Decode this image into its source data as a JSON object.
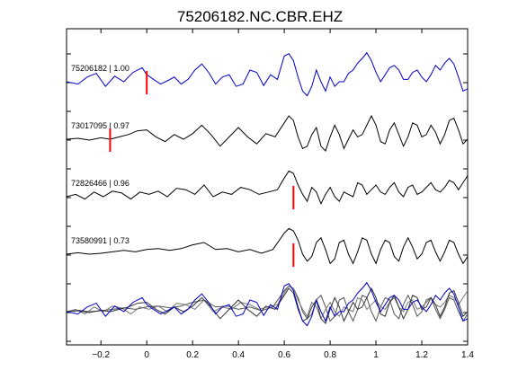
{
  "chart_data": {
    "type": "line",
    "title": "75206182.NC.CBR.EHZ",
    "xlabel": "",
    "ylabel": "",
    "xlim": [
      -0.35,
      1.4
    ],
    "xticks": [
      -0.2,
      0,
      0.2,
      0.4,
      0.6,
      0.8,
      1,
      1.2,
      1.4
    ],
    "xtick_labels": [
      "−0.2",
      "0",
      "0.2",
      "0.4",
      "0.6",
      "0.8",
      "1",
      "1.2",
      "1.4"
    ],
    "grid": false,
    "trace_spacing": 1,
    "traces": [
      {
        "label": "75206182 | 1.00",
        "color": "#0000cc",
        "baseline": 0,
        "pick_time": 0.0,
        "x": [
          -0.35,
          -0.3,
          -0.26,
          -0.22,
          -0.18,
          -0.14,
          -0.1,
          -0.06,
          -0.02,
          0.0,
          0.03,
          0.06,
          0.09,
          0.12,
          0.15,
          0.18,
          0.21,
          0.24,
          0.27,
          0.3,
          0.33,
          0.36,
          0.39,
          0.42,
          0.45,
          0.48,
          0.51,
          0.54,
          0.57,
          0.6,
          0.62,
          0.64,
          0.66,
          0.68,
          0.7,
          0.72,
          0.74,
          0.76,
          0.78,
          0.8,
          0.82,
          0.84,
          0.86,
          0.88,
          0.9,
          0.92,
          0.94,
          0.96,
          0.98,
          1.0,
          1.02,
          1.04,
          1.06,
          1.08,
          1.1,
          1.12,
          1.14,
          1.16,
          1.18,
          1.2,
          1.22,
          1.24,
          1.26,
          1.28,
          1.3,
          1.32,
          1.34,
          1.36,
          1.38,
          1.4
        ],
        "y": [
          0.0,
          -0.05,
          0.1,
          0.18,
          -0.1,
          0.12,
          0.0,
          0.2,
          0.3,
          0.15,
          0.05,
          -0.05,
          0.02,
          0.1,
          -0.05,
          0.05,
          0.25,
          0.38,
          0.2,
          -0.05,
          0.1,
          0.15,
          -0.1,
          -0.05,
          0.25,
          0.2,
          -0.08,
          0.15,
          0.05,
          0.55,
          0.6,
          0.45,
          0.1,
          -0.2,
          -0.3,
          -0.1,
          0.25,
          0.0,
          -0.2,
          0.1,
          -0.1,
          0.0,
          0.0,
          0.18,
          0.25,
          0.4,
          0.5,
          0.62,
          0.45,
          0.2,
          0.0,
          0.15,
          0.3,
          0.35,
          0.25,
          0.05,
          0.05,
          0.2,
          0.25,
          0.1,
          0.0,
          0.15,
          0.35,
          0.25,
          0.4,
          0.5,
          0.38,
          0.1,
          -0.2,
          -0.15
        ]
      },
      {
        "label": "73017095 | 0.97",
        "color": "#000000",
        "baseline": -1,
        "pick_time": -0.16,
        "x": [
          -0.35,
          -0.3,
          -0.25,
          -0.2,
          -0.16,
          -0.12,
          -0.08,
          -0.04,
          0.0,
          0.04,
          0.08,
          0.12,
          0.16,
          0.2,
          0.24,
          0.28,
          0.32,
          0.36,
          0.4,
          0.44,
          0.48,
          0.52,
          0.56,
          0.6,
          0.62,
          0.64,
          0.66,
          0.68,
          0.7,
          0.72,
          0.74,
          0.76,
          0.78,
          0.8,
          0.82,
          0.84,
          0.86,
          0.88,
          0.9,
          0.92,
          0.94,
          0.96,
          0.98,
          1.0,
          1.02,
          1.04,
          1.06,
          1.08,
          1.1,
          1.12,
          1.14,
          1.16,
          1.18,
          1.2,
          1.22,
          1.24,
          1.26,
          1.28,
          1.3,
          1.32,
          1.34,
          1.36,
          1.38,
          1.4
        ],
        "y": [
          0.0,
          0.02,
          -0.02,
          0.03,
          0.0,
          0.05,
          0.1,
          0.18,
          0.2,
          0.05,
          -0.05,
          0.1,
          0.0,
          0.12,
          0.3,
          0.1,
          -0.15,
          0.05,
          0.25,
          0.05,
          -0.1,
          0.12,
          0.05,
          0.35,
          0.5,
          0.4,
          0.05,
          -0.2,
          -0.15,
          0.1,
          0.25,
          -0.15,
          -0.25,
          0.05,
          0.3,
          0.1,
          -0.2,
          0.0,
          0.2,
          0.05,
          0.1,
          0.3,
          0.5,
          0.3,
          -0.05,
          -0.1,
          0.2,
          0.35,
          0.1,
          -0.15,
          0.05,
          0.35,
          0.3,
          0.05,
          0.1,
          0.3,
          0.15,
          -0.1,
          0.1,
          0.4,
          0.45,
          0.2,
          -0.1,
          0.0
        ]
      },
      {
        "label": "72826466 | 0.96",
        "color": "#000000",
        "baseline": -2,
        "pick_time": 0.64,
        "x": [
          -0.35,
          -0.31,
          -0.27,
          -0.23,
          -0.19,
          -0.15,
          -0.11,
          -0.07,
          -0.03,
          0.01,
          0.05,
          0.09,
          0.13,
          0.17,
          0.21,
          0.25,
          0.29,
          0.33,
          0.37,
          0.41,
          0.45,
          0.49,
          0.53,
          0.57,
          0.6,
          0.62,
          0.64,
          0.66,
          0.68,
          0.7,
          0.72,
          0.74,
          0.76,
          0.78,
          0.8,
          0.82,
          0.84,
          0.86,
          0.88,
          0.9,
          0.92,
          0.94,
          0.96,
          0.98,
          1.0,
          1.02,
          1.04,
          1.06,
          1.08,
          1.1,
          1.12,
          1.14,
          1.16,
          1.18,
          1.2,
          1.22,
          1.24,
          1.26,
          1.28,
          1.3,
          1.32,
          1.34,
          1.36,
          1.38,
          1.4
        ],
        "y": [
          0.0,
          0.05,
          -0.05,
          0.1,
          0.0,
          0.12,
          0.08,
          -0.05,
          0.1,
          0.05,
          0.12,
          0.0,
          0.18,
          0.15,
          0.05,
          0.25,
          0.0,
          0.1,
          0.05,
          0.2,
          0.15,
          0.05,
          0.1,
          0.15,
          0.4,
          0.55,
          0.5,
          0.25,
          0.05,
          -0.1,
          0.2,
          0.1,
          -0.15,
          0.05,
          0.2,
          0.0,
          -0.1,
          0.1,
          0.05,
          0.0,
          0.3,
          0.25,
          0.05,
          0.15,
          0.25,
          0.1,
          0.05,
          0.2,
          0.3,
          0.1,
          0.0,
          0.2,
          0.25,
          0.05,
          0.1,
          0.2,
          0.3,
          0.15,
          0.1,
          0.2,
          0.35,
          0.3,
          0.15,
          0.3,
          0.45
        ]
      },
      {
        "label": "73580991 | 0.73",
        "color": "#000000",
        "baseline": -3,
        "pick_time": 0.64,
        "x": [
          -0.35,
          -0.3,
          -0.25,
          -0.2,
          -0.15,
          -0.1,
          -0.05,
          0.0,
          0.05,
          0.1,
          0.15,
          0.2,
          0.25,
          0.3,
          0.35,
          0.4,
          0.45,
          0.5,
          0.55,
          0.6,
          0.62,
          0.64,
          0.66,
          0.68,
          0.7,
          0.72,
          0.74,
          0.76,
          0.78,
          0.8,
          0.82,
          0.84,
          0.86,
          0.88,
          0.9,
          0.92,
          0.94,
          0.96,
          0.98,
          1.0,
          1.02,
          1.04,
          1.06,
          1.08,
          1.1,
          1.12,
          1.14,
          1.16,
          1.18,
          1.2,
          1.22,
          1.24,
          1.26,
          1.28,
          1.3,
          1.32,
          1.34,
          1.36,
          1.38,
          1.4
        ],
        "y": [
          0.0,
          0.03,
          0.0,
          0.02,
          0.05,
          0.08,
          0.05,
          0.1,
          0.12,
          0.08,
          0.12,
          0.2,
          0.25,
          0.1,
          0.12,
          0.05,
          0.1,
          0.02,
          0.1,
          0.45,
          0.55,
          0.5,
          0.3,
          0.0,
          -0.15,
          -0.05,
          0.25,
          0.35,
          0.1,
          -0.2,
          -0.1,
          0.25,
          0.3,
          0.0,
          -0.2,
          0.05,
          0.35,
          0.3,
          0.0,
          -0.2,
          0.1,
          0.3,
          0.25,
          -0.05,
          -0.15,
          0.15,
          0.35,
          0.15,
          -0.1,
          0.0,
          0.25,
          0.3,
          0.05,
          -0.15,
          0.05,
          0.3,
          0.25,
          0.0,
          -0.2,
          -0.05
        ]
      }
    ],
    "overlay": {
      "baseline": -4
    }
  }
}
